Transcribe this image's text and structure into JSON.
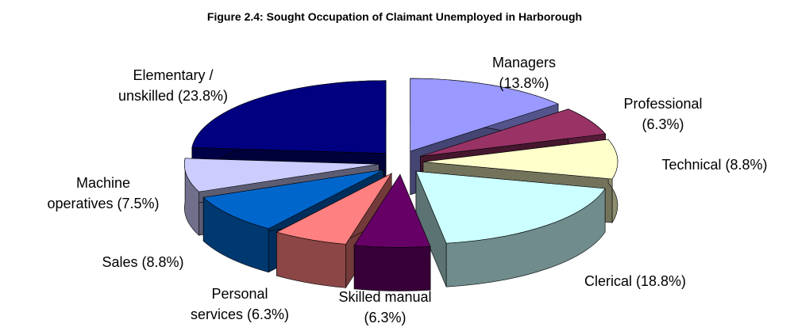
{
  "chart_data": {
    "type": "pie3d",
    "title": "Figure 2.4: Sought Occupation of Claimant Unemployed in Harborough",
    "categories": [
      "Managers",
      "Professional",
      "Technical",
      "Clerical",
      "Skilled manual",
      "Personal services",
      "Sales",
      "Machine operatives",
      "Elementary / unskilled"
    ],
    "values": [
      13.8,
      6.3,
      8.8,
      18.8,
      6.3,
      6.3,
      8.8,
      7.5,
      23.8
    ],
    "value_labels": [
      "(13.8%)",
      "(6.3%)",
      "(8.8%)",
      "(18.8%)",
      "(6.3%)",
      "(6.3%)",
      "(8.8%)",
      "(7.5%)",
      "(23.8%)"
    ],
    "colors": [
      "#9999ff",
      "#993366",
      "#ffffcc",
      "#ccffff",
      "#660066",
      "#ff8080",
      "#0066cc",
      "#ccccff",
      "#000080"
    ]
  }
}
